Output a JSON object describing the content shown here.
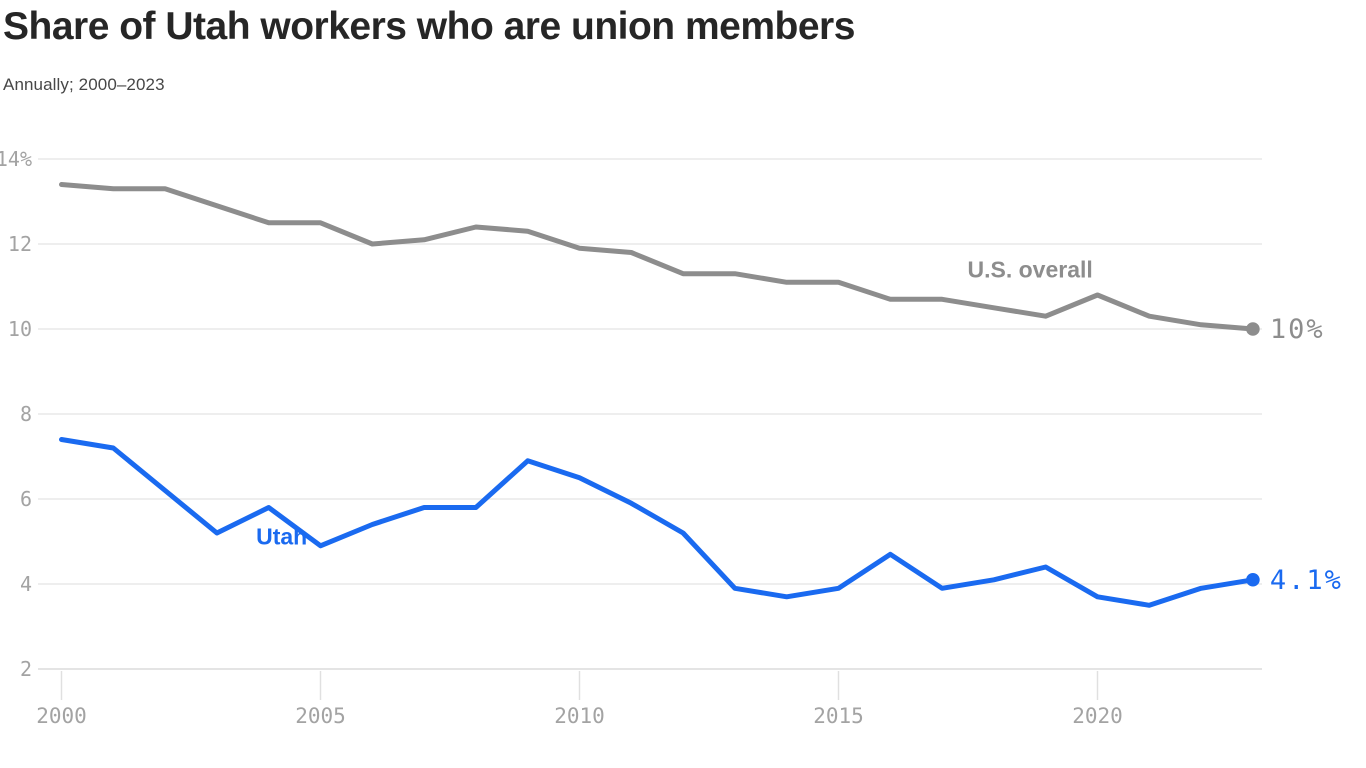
{
  "header": {
    "title": "Share of Utah workers who are union members",
    "subtitle": "Annually; 2000–2023"
  },
  "colors": {
    "us_line": "#8d8d8d",
    "utah_line": "#1a6af0",
    "tick_text": "#a3a3a3",
    "grid": "#e9e9e9",
    "title_text": "#262626"
  },
  "chart_data": {
    "type": "line",
    "x": [
      2000,
      2001,
      2002,
      2003,
      2004,
      2005,
      2006,
      2007,
      2008,
      2009,
      2010,
      2011,
      2012,
      2013,
      2014,
      2015,
      2016,
      2017,
      2018,
      2019,
      2020,
      2021,
      2022,
      2023
    ],
    "series": [
      {
        "name": "U.S. overall",
        "color": "#8d8d8d",
        "values": [
          13.4,
          13.3,
          13.3,
          12.9,
          12.5,
          12.5,
          12.0,
          12.1,
          12.4,
          12.3,
          11.9,
          11.8,
          11.3,
          11.3,
          11.1,
          11.1,
          10.7,
          10.7,
          10.5,
          10.3,
          10.8,
          10.3,
          10.1,
          10.0
        ],
        "end_label": "10%",
        "end_dot": true
      },
      {
        "name": "Utah",
        "color": "#1a6af0",
        "values": [
          7.4,
          7.2,
          6.2,
          5.2,
          5.8,
          4.9,
          5.4,
          5.8,
          5.8,
          6.9,
          6.5,
          5.9,
          5.2,
          3.9,
          3.7,
          3.9,
          4.7,
          3.9,
          4.1,
          4.4,
          3.7,
          3.5,
          3.9,
          4.1
        ],
        "end_label": "4.1%",
        "end_dot": true
      }
    ],
    "annotations": [
      {
        "text": "U.S. overall",
        "series": "U.S. overall",
        "year": 2018.7,
        "value": 11.4
      },
      {
        "text": "Utah",
        "series": "Utah",
        "year": 2004.25,
        "value": 5.12
      }
    ],
    "yticks": [
      {
        "v": 14,
        "label": "14%"
      },
      {
        "v": 12,
        "label": "12"
      },
      {
        "v": 10,
        "label": "10"
      },
      {
        "v": 8,
        "label": "8"
      },
      {
        "v": 6,
        "label": "6"
      },
      {
        "v": 4,
        "label": "4"
      },
      {
        "v": 2,
        "label": "2"
      }
    ],
    "xticks": [
      {
        "v": 2000,
        "label": "2000"
      },
      {
        "v": 2005,
        "label": "2005"
      },
      {
        "v": 2010,
        "label": "2010"
      },
      {
        "v": 2015,
        "label": "2015"
      },
      {
        "v": 2020,
        "label": "2020"
      }
    ],
    "ylim": [
      2,
      14
    ],
    "xlim": [
      2000,
      2023
    ],
    "grid": "horizontal",
    "title": "Share of Utah workers who are union members",
    "subtitle": "Annually; 2000–2023",
    "xlabel": "",
    "ylabel": ""
  }
}
